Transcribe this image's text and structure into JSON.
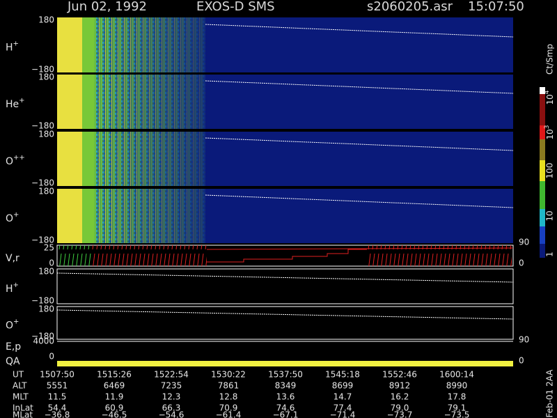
{
  "header": {
    "date": "Jun 02, 1992",
    "instrument": "EXOS-D SMS",
    "file": "s2060205.asr",
    "time": "15:07:50"
  },
  "panels": [
    {
      "label": "H",
      "charge": "+",
      "ticks": [
        "180",
        "−180"
      ]
    },
    {
      "label": "He",
      "charge": "+",
      "ticks": [
        "180",
        "−180"
      ]
    },
    {
      "label": "O",
      "charge": "++",
      "ticks": [
        "180",
        "−180"
      ]
    },
    {
      "label": "O",
      "charge": "+",
      "ticks": [
        "180",
        "−180"
      ]
    },
    {
      "label": "V,r",
      "ticks": [
        "25",
        "0"
      ],
      "right_ticks": [
        "90",
        "0"
      ]
    },
    {
      "label": "H",
      "charge": "+",
      "ticks": [
        "180",
        "−180"
      ]
    },
    {
      "label": "O",
      "charge": "+",
      "ticks": [
        "180",
        "−180"
      ]
    },
    {
      "label": "E,p",
      "ticks": [
        "4000",
        "0"
      ],
      "right_ticks": [
        "90",
        "0"
      ]
    },
    {
      "label": "QA"
    }
  ],
  "colorbar": {
    "unit": "Ct/Smp",
    "labels": [
      {
        "base": "10",
        "exp": "4"
      },
      {
        "base": "10",
        "exp": "3"
      },
      "100",
      "10",
      "1"
    ]
  },
  "table": {
    "rows": [
      {
        "name": "UT",
        "values": [
          "1507:50",
          "1515:26",
          "1522:54",
          "1530:22",
          "1537:50",
          "1545:18",
          "1552:46",
          "1600:14"
        ]
      },
      {
        "name": "ALT",
        "values": [
          "5551",
          "6469",
          "7235",
          "7861",
          "8349",
          "8699",
          "8912",
          "8990"
        ]
      },
      {
        "name": "MLT",
        "values": [
          "11.5",
          "11.9",
          "12.3",
          "12.8",
          "13.6",
          "14.7",
          "16.2",
          "17.8"
        ]
      },
      {
        "name": "InLat",
        "values": [
          "54.4",
          "60.9",
          "66.3",
          "70.9",
          "74.6",
          "77.4",
          "79.0",
          "79.1"
        ]
      },
      {
        "name": "MLat",
        "values": [
          "−36.8",
          "−46.5",
          "−54.6",
          "−61.4",
          "−67.1",
          "−71.4",
          "−73.7",
          "−73.5"
        ]
      }
    ]
  },
  "side_label": "Feb-01 2AA"
}
